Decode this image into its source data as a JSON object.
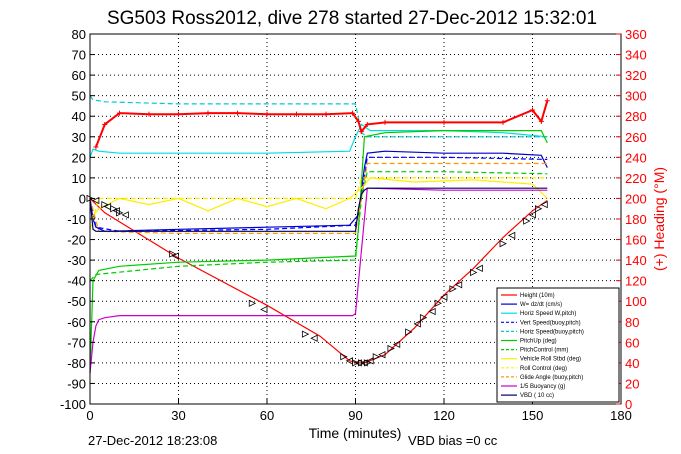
{
  "chart_data": {
    "type": "line",
    "title": "SG503 Ross2012, dive 278 started 27-Dec-2012 15:32:01",
    "xlabel": "Time (minutes)",
    "ylabel": "",
    "y2label": "(+) Heading (°M)",
    "xlim": [
      0,
      180
    ],
    "ylim": [
      -100,
      80
    ],
    "y2lim": [
      0,
      360
    ],
    "xticks": [
      0,
      30,
      60,
      90,
      120,
      150,
      180
    ],
    "yticks": [
      80,
      70,
      60,
      50,
      40,
      30,
      20,
      10,
      0,
      -10,
      -20,
      -30,
      -40,
      -50,
      -60,
      -70,
      -80,
      -90,
      -100
    ],
    "y2ticks": [
      360,
      340,
      320,
      300,
      280,
      260,
      240,
      220,
      200,
      180,
      160,
      140,
      120,
      100,
      80,
      60,
      40,
      20,
      0
    ],
    "grid": true,
    "legend_position": "bottom-right",
    "footer_left": "27-Dec-2012 18:23:08",
    "footer_right": "VBD bias =0 cc",
    "series": [
      {
        "name": "Height (10m)",
        "color": "#ff0000",
        "style": "solid",
        "x": [
          0,
          5,
          30,
          60,
          78,
          88,
          91,
          93,
          100,
          110,
          120,
          130,
          140,
          150,
          155
        ],
        "y": [
          0,
          -7,
          -29,
          -52,
          -67,
          -79,
          -80,
          -80,
          -76,
          -63,
          -47,
          -34,
          -19,
          -6,
          -1
        ]
      },
      {
        "name": "W= dz/dt (cm/s)",
        "color": "#0000cc",
        "style": "solid",
        "x": [
          0,
          1,
          2,
          5,
          30,
          60,
          88,
          91,
          93,
          94,
          100,
          120,
          140,
          153,
          155
        ],
        "y": [
          0,
          -10,
          -14,
          -16,
          -15,
          -14,
          -13,
          -8,
          15,
          22,
          23,
          22,
          22,
          21,
          15
        ]
      },
      {
        "name": "Horiz Speed W,pitch)",
        "color": "#00dddd",
        "style": "solid",
        "x": [
          0,
          1,
          3,
          10,
          30,
          60,
          88,
          90,
          92,
          95,
          120,
          140,
          155
        ],
        "y": [
          20,
          24,
          23,
          22,
          22,
          22,
          23,
          30,
          36,
          33,
          33,
          32,
          30
        ]
      },
      {
        "name": "Vert Speed(buoy,pitch)",
        "color": "#0000ff",
        "style": "dashed",
        "x": [
          0,
          2,
          10,
          60,
          90,
          92,
          94,
          120,
          155
        ],
        "y": [
          0,
          -14,
          -16,
          -15,
          -13,
          0,
          20,
          20,
          19
        ]
      },
      {
        "name": "Horiz Speed(buoy,pitch)",
        "color": "#00cccc",
        "style": "dashed",
        "x": [
          0,
          1,
          5,
          30,
          60,
          90,
          92,
          94,
          120,
          155
        ],
        "y": [
          50,
          48,
          47,
          46,
          46,
          46,
          32,
          30,
          30,
          30
        ]
      },
      {
        "name": "PitchUp (deg)",
        "color": "#00cc00",
        "style": "solid",
        "x": [
          0,
          1,
          3,
          10,
          30,
          60,
          90,
          91,
          93,
          100,
          120,
          140,
          153,
          155
        ],
        "y": [
          -85,
          -40,
          -35,
          -33,
          -31,
          -30,
          -28,
          -15,
          30,
          32,
          33,
          33,
          33,
          27
        ]
      },
      {
        "name": "PitchControl (mm)",
        "color": "#00cc00",
        "style": "dashed",
        "x": [
          0,
          2,
          30,
          60,
          90,
          92,
          94,
          120,
          155
        ],
        "y": [
          -40,
          -37,
          -33,
          -31,
          -30,
          0,
          13,
          13,
          12
        ]
      },
      {
        "name": "Vehicle Roll Stbd (deg)",
        "color": "#ffee00",
        "style": "solid",
        "x": [
          0,
          3,
          10,
          20,
          30,
          40,
          50,
          60,
          70,
          80,
          88,
          92,
          95,
          110,
          130,
          150,
          155
        ],
        "y": [
          -10,
          -5,
          0,
          -3,
          0,
          -6,
          0,
          -4,
          0,
          -5,
          0,
          5,
          10,
          8,
          9,
          7,
          0
        ]
      },
      {
        "name": "Roll Control (deg)",
        "color": "#ffee00",
        "style": "dashed",
        "x": [
          0,
          3,
          30,
          60,
          90,
          92,
          94,
          120,
          155
        ],
        "y": [
          -15,
          0,
          0,
          0,
          0,
          10,
          10,
          10,
          10
        ]
      },
      {
        "name": "Glide Angle (buoy,pitch)",
        "color": "#ff9900",
        "style": "dashed",
        "x": [
          0,
          3,
          30,
          60,
          90,
          92,
          94,
          120,
          155
        ],
        "y": [
          0,
          -16,
          -17,
          -17,
          -17,
          0,
          17,
          17,
          17
        ]
      },
      {
        "name": "1/5 Buoyancy (g)",
        "color": "#cc00cc",
        "style": "solid",
        "x": [
          0,
          1,
          2,
          3,
          5,
          10,
          20,
          60,
          89,
          90,
          94,
          95,
          120,
          155
        ],
        "y": [
          -85,
          -70,
          -62,
          -59,
          -58,
          -57,
          -57,
          -57,
          -57,
          -56,
          5,
          5,
          4,
          4
        ]
      },
      {
        "name": "VBD ( 10 cc)",
        "color": "#000066",
        "style": "solid",
        "x": [
          0,
          1,
          2,
          3,
          90,
          91,
          92,
          93,
          94,
          155
        ],
        "y": [
          0,
          -15,
          -16,
          -16,
          -16,
          -5,
          2,
          4,
          5,
          5
        ]
      }
    ],
    "heading_series": {
      "name": "(+) Heading (°M)",
      "color": "#ff0000",
      "x": [
        2,
        5,
        10,
        20,
        30,
        40,
        50,
        60,
        70,
        80,
        89,
        91,
        92,
        94,
        100,
        120,
        140,
        150,
        153,
        155
      ],
      "y": [
        250,
        272,
        283,
        282,
        282,
        283,
        283,
        282,
        282,
        282,
        283,
        275,
        265,
        272,
        274,
        274,
        274,
        286,
        275,
        295
      ]
    },
    "height_markers": {
      "x": [
        0,
        2,
        5,
        6,
        8,
        9,
        10,
        12,
        28,
        29,
        55,
        59,
        73,
        76,
        86,
        88,
        90,
        91,
        92,
        93,
        94,
        95,
        97,
        99,
        102,
        104,
        108,
        111,
        113,
        116,
        118,
        120,
        123,
        125,
        130,
        132,
        140,
        143,
        148,
        150,
        152,
        154
      ],
      "y": [
        0,
        -1,
        -3,
        -4,
        -5,
        -6,
        -7,
        -8,
        -27,
        -28,
        -51,
        -54,
        -66,
        -68,
        -77,
        -79,
        -80,
        -80,
        -80,
        -80,
        -80,
        -79,
        -77,
        -76,
        -73,
        -71,
        -65,
        -61,
        -58,
        -55,
        -51,
        -48,
        -44,
        -42,
        -36,
        -34,
        -22,
        -18,
        -11,
        -8,
        -5,
        -3
      ]
    }
  }
}
